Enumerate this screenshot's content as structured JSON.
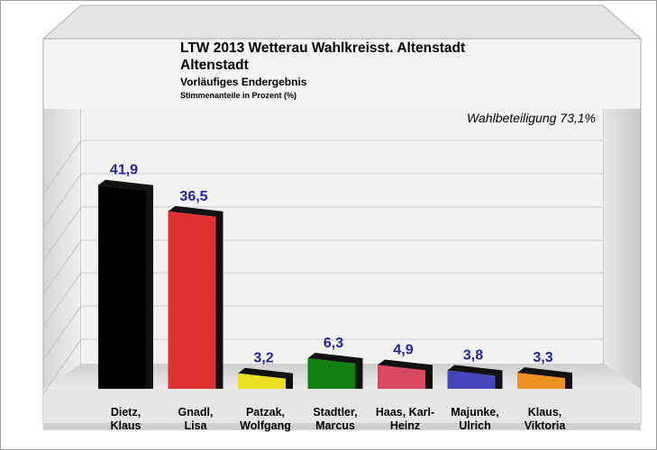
{
  "chart_data": {
    "type": "bar",
    "title_line1": "LTW 2013 Wetterau Wahlkreisst. Altenstadt",
    "title_line2": "Altenstadt",
    "subtitle": "Vorläufiges Endergebnis",
    "ylabel": "Stimmenanteile in Prozent (%)",
    "annotation": "Wahlbeteiligung 73,1%",
    "categories": [
      [
        "Dietz,",
        "Klaus"
      ],
      [
        "Gnadl,",
        "Lisa"
      ],
      [
        "Patzak,",
        "Wolfgang"
      ],
      [
        "Stadtler,",
        "Marcus"
      ],
      [
        "Haas, Karl-",
        "Heinz"
      ],
      [
        "Majunke,",
        "Ulrich"
      ],
      [
        "Klaus,",
        "Viktoria"
      ]
    ],
    "values": [
      41.9,
      36.5,
      3.2,
      6.3,
      4.9,
      3.8,
      3.3
    ],
    "value_labels": [
      "41,9",
      "36,5",
      "3,2",
      "6,3",
      "4,9",
      "3,8",
      "3,3"
    ],
    "colors": [
      "#000000",
      "#e03030",
      "#e8e020",
      "#108010",
      "#d84860",
      "#4444bb",
      "#e89020"
    ],
    "value_label_color": "#2222aa",
    "ylim": [
      0,
      45
    ],
    "grid": true,
    "legend": "none"
  }
}
